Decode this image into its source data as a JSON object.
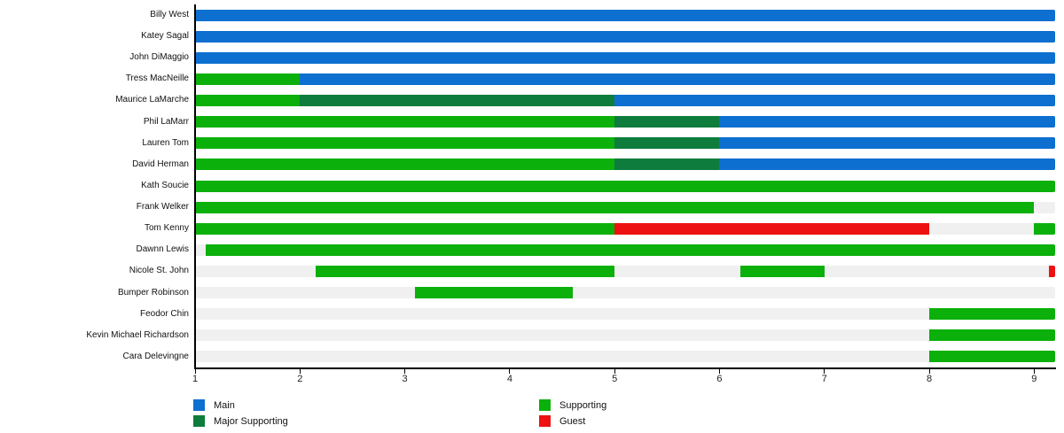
{
  "chart_data": {
    "type": "bar",
    "orientation": "horizontal",
    "title": "",
    "xlabel": "",
    "ylabel": "",
    "xlim": [
      1,
      9.2
    ],
    "x_ticks": [
      1,
      2,
      3,
      4,
      5,
      6,
      7,
      8,
      9
    ],
    "grid": false,
    "legend_position": "bottom",
    "track_color": "#f0f0f0",
    "axis_color": "#000000",
    "roles": {
      "Main": "#0d6fd0",
      "Major Supporting": "#0e7c3c",
      "Supporting": "#0bb00b",
      "Guest": "#ee1111"
    },
    "legend": [
      {
        "label": "Main",
        "role": "Main"
      },
      {
        "label": "Major Supporting",
        "role": "Major Supporting"
      },
      {
        "label": "Supporting",
        "role": "Supporting"
      },
      {
        "label": "Guest",
        "role": "Guest"
      }
    ],
    "rows": [
      {
        "name": "Billy West",
        "segments": [
          {
            "start": 1,
            "end": 9.2,
            "role": "Main"
          }
        ]
      },
      {
        "name": "Katey Sagal",
        "segments": [
          {
            "start": 1,
            "end": 9.2,
            "role": "Main"
          }
        ]
      },
      {
        "name": "John DiMaggio",
        "segments": [
          {
            "start": 1,
            "end": 9.2,
            "role": "Main"
          }
        ]
      },
      {
        "name": "Tress MacNeille",
        "segments": [
          {
            "start": 1,
            "end": 2,
            "role": "Supporting"
          },
          {
            "start": 2,
            "end": 9.2,
            "role": "Main"
          }
        ]
      },
      {
        "name": "Maurice LaMarche",
        "segments": [
          {
            "start": 1,
            "end": 2,
            "role": "Supporting"
          },
          {
            "start": 2,
            "end": 5,
            "role": "Major Supporting"
          },
          {
            "start": 5,
            "end": 9.2,
            "role": "Main"
          }
        ]
      },
      {
        "name": "Phil LaMarr",
        "segments": [
          {
            "start": 1,
            "end": 5,
            "role": "Supporting"
          },
          {
            "start": 5,
            "end": 6,
            "role": "Major Supporting"
          },
          {
            "start": 6,
            "end": 9.2,
            "role": "Main"
          }
        ]
      },
      {
        "name": "Lauren Tom",
        "segments": [
          {
            "start": 1,
            "end": 5,
            "role": "Supporting"
          },
          {
            "start": 5,
            "end": 6,
            "role": "Major Supporting"
          },
          {
            "start": 6,
            "end": 9.2,
            "role": "Main"
          }
        ]
      },
      {
        "name": "David Herman",
        "segments": [
          {
            "start": 1,
            "end": 5,
            "role": "Supporting"
          },
          {
            "start": 5,
            "end": 6,
            "role": "Major Supporting"
          },
          {
            "start": 6,
            "end": 9.2,
            "role": "Main"
          }
        ]
      },
      {
        "name": "Kath Soucie",
        "segments": [
          {
            "start": 1,
            "end": 9.2,
            "role": "Supporting"
          }
        ]
      },
      {
        "name": "Frank Welker",
        "segments": [
          {
            "start": 1,
            "end": 9,
            "role": "Supporting"
          }
        ]
      },
      {
        "name": "Tom Kenny",
        "segments": [
          {
            "start": 1,
            "end": 5,
            "role": "Supporting"
          },
          {
            "start": 5,
            "end": 8,
            "role": "Guest"
          },
          {
            "start": 9,
            "end": 9.2,
            "role": "Supporting"
          }
        ]
      },
      {
        "name": "Dawnn Lewis",
        "segments": [
          {
            "start": 1.1,
            "end": 9.2,
            "role": "Supporting"
          }
        ]
      },
      {
        "name": "Nicole St. John",
        "segments": [
          {
            "start": 2.15,
            "end": 5,
            "role": "Supporting"
          },
          {
            "start": 6.2,
            "end": 7,
            "role": "Supporting"
          },
          {
            "start": 9.14,
            "end": 9.2,
            "role": "Guest"
          }
        ]
      },
      {
        "name": "Bumper Robinson",
        "segments": [
          {
            "start": 3.1,
            "end": 4.6,
            "role": "Supporting"
          }
        ]
      },
      {
        "name": "Feodor Chin",
        "segments": [
          {
            "start": 8,
            "end": 9.2,
            "role": "Supporting"
          }
        ]
      },
      {
        "name": "Kevin Michael Richardson",
        "segments": [
          {
            "start": 8,
            "end": 9.2,
            "role": "Supporting"
          }
        ]
      },
      {
        "name": "Cara Delevingne",
        "segments": [
          {
            "start": 8,
            "end": 9.2,
            "role": "Supporting"
          }
        ]
      }
    ]
  }
}
